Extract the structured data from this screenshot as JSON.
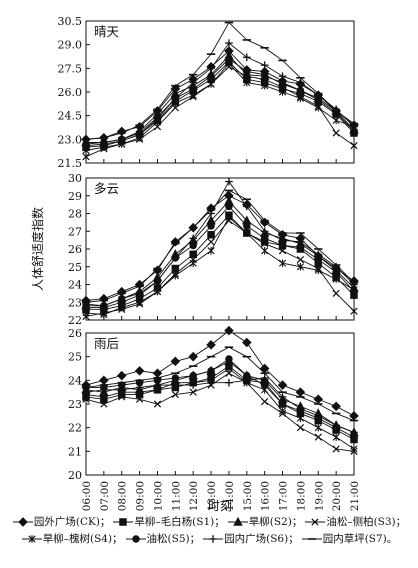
{
  "chart_data": [
    {
      "type": "line",
      "title": "晴天",
      "ylabel": "",
      "ylim": [
        21.5,
        30.5
      ],
      "yticks": [
        "30.5",
        "29.0",
        "27.5",
        "26.0",
        "24.5",
        "23.0",
        "21.5"
      ],
      "series": [
        {
          "name": "园外广场(CK)",
          "values": [
            23.0,
            23.1,
            23.5,
            23.8,
            24.8,
            26.2,
            26.8,
            27.6,
            28.6,
            27.4,
            27.3,
            26.7,
            26.5,
            25.8,
            24.8,
            23.9
          ]
        },
        {
          "name": "旱柳–毛白杨(S1)",
          "values": [
            22.5,
            22.6,
            22.9,
            23.3,
            24.2,
            25.4,
            26.1,
            26.8,
            27.9,
            26.8,
            26.6,
            26.2,
            25.9,
            25.4,
            24.6,
            23.4
          ]
        },
        {
          "name": "旱柳(S2)",
          "values": [
            22.8,
            22.8,
            23.0,
            23.5,
            24.6,
            25.9,
            26.4,
            27.1,
            28.3,
            27.1,
            27.0,
            26.6,
            26.1,
            25.6,
            24.8,
            23.6
          ]
        },
        {
          "name": "油松–侧柏(S3)",
          "values": [
            21.9,
            22.4,
            22.7,
            23.0,
            23.8,
            25.0,
            25.7,
            26.5,
            27.6,
            27.0,
            26.8,
            26.3,
            25.7,
            25.1,
            23.4,
            22.6
          ]
        },
        {
          "name": "旱柳–槐树(S4)",
          "values": [
            22.3,
            22.5,
            22.7,
            23.1,
            24.1,
            25.3,
            25.8,
            26.5,
            27.8,
            26.6,
            26.4,
            26.0,
            25.6,
            25.0,
            24.2,
            23.8
          ]
        },
        {
          "name": "油松(S5)",
          "values": [
            22.7,
            22.8,
            23.0,
            23.4,
            24.4,
            25.6,
            26.2,
            27.0,
            28.1,
            27.3,
            27.1,
            26.5,
            26.1,
            25.5,
            24.7,
            23.5
          ]
        },
        {
          "name": "园内广场(S6)",
          "values": [
            22.6,
            22.7,
            22.9,
            23.3,
            24.3,
            25.6,
            26.6,
            27.5,
            29.1,
            28.2,
            27.7,
            27.0,
            26.6,
            25.8,
            24.9,
            23.8
          ]
        },
        {
          "name": "园内草坪(S7)",
          "values": [
            23.0,
            23.1,
            23.4,
            23.9,
            24.9,
            26.4,
            27.1,
            28.4,
            30.4,
            29.3,
            28.8,
            28.0,
            26.9,
            25.9,
            24.8,
            24.0
          ]
        }
      ]
    },
    {
      "type": "line",
      "title": "多云",
      "ylabel": "人体舒适度指数",
      "ylim": [
        22,
        30
      ],
      "yticks": [
        "30",
        "29",
        "28",
        "27",
        "26",
        "25",
        "24",
        "23",
        "22"
      ],
      "series": [
        {
          "name": "园外广场(CK)",
          "values": [
            23.1,
            23.2,
            23.6,
            24.0,
            24.8,
            26.4,
            27.2,
            28.3,
            29.0,
            28.5,
            27.5,
            26.8,
            26.6,
            25.6,
            24.9,
            24.2
          ]
        },
        {
          "name": "旱柳–毛白杨(S1)",
          "values": [
            22.6,
            22.6,
            22.8,
            23.2,
            23.8,
            24.9,
            25.7,
            26.8,
            27.9,
            26.9,
            26.4,
            26.2,
            26.0,
            25.2,
            24.4,
            23.4
          ]
        },
        {
          "name": "旱柳(S2)",
          "values": [
            22.8,
            22.8,
            23.2,
            23.6,
            24.4,
            25.7,
            26.5,
            27.6,
            28.7,
            27.6,
            26.9,
            26.6,
            26.3,
            25.6,
            24.8,
            23.8
          ]
        },
        {
          "name": "油松–侧柏(S3)",
          "values": [
            22.2,
            22.4,
            22.6,
            22.9,
            23.6,
            24.6,
            25.4,
            26.4,
            27.6,
            26.9,
            26.3,
            25.9,
            25.4,
            24.9,
            23.5,
            22.5
          ]
        },
        {
          "name": "旱柳–槐树(S4)",
          "values": [
            22.4,
            22.3,
            22.7,
            23.0,
            23.6,
            24.5,
            25.2,
            25.9,
            27.8,
            26.9,
            25.9,
            25.2,
            25.0,
            24.8,
            24.3,
            23.7
          ]
        },
        {
          "name": "油松(S5)",
          "values": [
            22.9,
            22.8,
            23.2,
            23.5,
            24.2,
            25.5,
            26.2,
            27.3,
            28.4,
            27.3,
            26.6,
            26.2,
            26.1,
            25.4,
            24.7,
            23.6
          ]
        },
        {
          "name": "园内广场(S6)",
          "values": [
            22.7,
            22.7,
            23.0,
            23.4,
            24.2,
            25.5,
            26.6,
            28.0,
            29.8,
            28.4,
            27.0,
            26.5,
            26.4,
            25.7,
            25.0,
            24.0
          ]
        },
        {
          "name": "园内草坪(S7)",
          "values": [
            23.0,
            23.1,
            23.5,
            23.9,
            24.9,
            26.3,
            27.2,
            28.2,
            29.3,
            28.8,
            27.6,
            26.9,
            26.9,
            26.0,
            25.1,
            24.1
          ]
        }
      ]
    },
    {
      "type": "line",
      "title": "雨后",
      "ylabel": "",
      "ylim": [
        20,
        26
      ],
      "yticks": [
        "26",
        "25",
        "24",
        "23",
        "22",
        "21",
        "20"
      ],
      "xlabel": "时刻",
      "categories": [
        "06:00",
        "07:00",
        "08:00",
        "09:00",
        "10:00",
        "11:00",
        "12:00",
        "13:00",
        "14:00",
        "15:00",
        "16:00",
        "17:00",
        "18:00",
        "19:00",
        "20:00",
        "21:00"
      ],
      "series": [
        {
          "name": "园外广场(CK)",
          "values": [
            23.8,
            24.0,
            24.2,
            24.4,
            24.3,
            24.8,
            25.0,
            25.5,
            26.1,
            25.6,
            24.5,
            23.8,
            23.5,
            23.2,
            22.9,
            22.5
          ]
        },
        {
          "name": "旱柳–毛白杨(S1)",
          "values": [
            23.3,
            23.2,
            23.4,
            23.4,
            23.6,
            23.7,
            23.9,
            24.1,
            24.6,
            24.0,
            23.9,
            23.0,
            22.6,
            22.3,
            21.9,
            21.5
          ]
        },
        {
          "name": "旱柳(S2)",
          "values": [
            23.6,
            23.5,
            23.7,
            23.6,
            23.8,
            24.0,
            24.2,
            24.4,
            24.8,
            24.2,
            24.0,
            23.2,
            22.9,
            22.6,
            22.1,
            21.8
          ]
        },
        {
          "name": "油松–侧柏(S3)",
          "values": [
            23.2,
            23.0,
            23.3,
            23.2,
            23.0,
            23.4,
            23.5,
            23.8,
            24.3,
            23.9,
            23.1,
            22.6,
            22.0,
            21.6,
            21.1,
            21.0
          ]
        },
        {
          "name": "旱柳–槐树(S4)",
          "values": [
            23.4,
            23.3,
            23.5,
            23.5,
            23.6,
            23.9,
            23.9,
            24.0,
            24.5,
            23.9,
            23.6,
            22.7,
            22.4,
            22.0,
            21.6,
            21.1
          ]
        },
        {
          "name": "油松(S5)",
          "values": [
            23.7,
            23.7,
            23.8,
            23.9,
            24.0,
            24.1,
            24.2,
            24.4,
            24.9,
            24.2,
            23.8,
            23.0,
            22.7,
            22.4,
            22.0,
            21.6
          ]
        },
        {
          "name": "园内广场(S6)",
          "values": [
            23.5,
            23.6,
            23.6,
            23.7,
            23.8,
            23.8,
            23.8,
            23.9,
            23.9,
            24.0,
            24.1,
            23.3,
            22.8,
            22.5,
            22.1,
            21.8
          ]
        },
        {
          "name": "园内草坪(S7)",
          "values": [
            23.7,
            23.8,
            23.9,
            24.0,
            24.1,
            24.3,
            24.6,
            25.0,
            25.4,
            25.0,
            24.3,
            23.5,
            23.3,
            23.0,
            22.6,
            22.3
          ]
        }
      ]
    }
  ],
  "legend": {
    "row1": [
      {
        "marker": "diamond",
        "label": "园外广场(CK)；"
      },
      {
        "marker": "square",
        "label": "旱柳–毛白杨(S1)；"
      },
      {
        "marker": "triangle",
        "label": "旱柳(S2)；"
      },
      {
        "marker": "x",
        "label": "油松–侧柏(S3)；"
      }
    ],
    "row2": [
      {
        "marker": "star",
        "label": "旱柳–槐树(S4)；"
      },
      {
        "marker": "circle",
        "label": "油松(S5)；"
      },
      {
        "marker": "plus",
        "label": "园内广场(S6)；"
      },
      {
        "marker": "dash",
        "label": "园内草坪(S7)。"
      }
    ]
  },
  "markers": [
    "diamond",
    "square",
    "triangle",
    "x",
    "star",
    "circle",
    "plus",
    "dash"
  ],
  "line_color": "#111111"
}
